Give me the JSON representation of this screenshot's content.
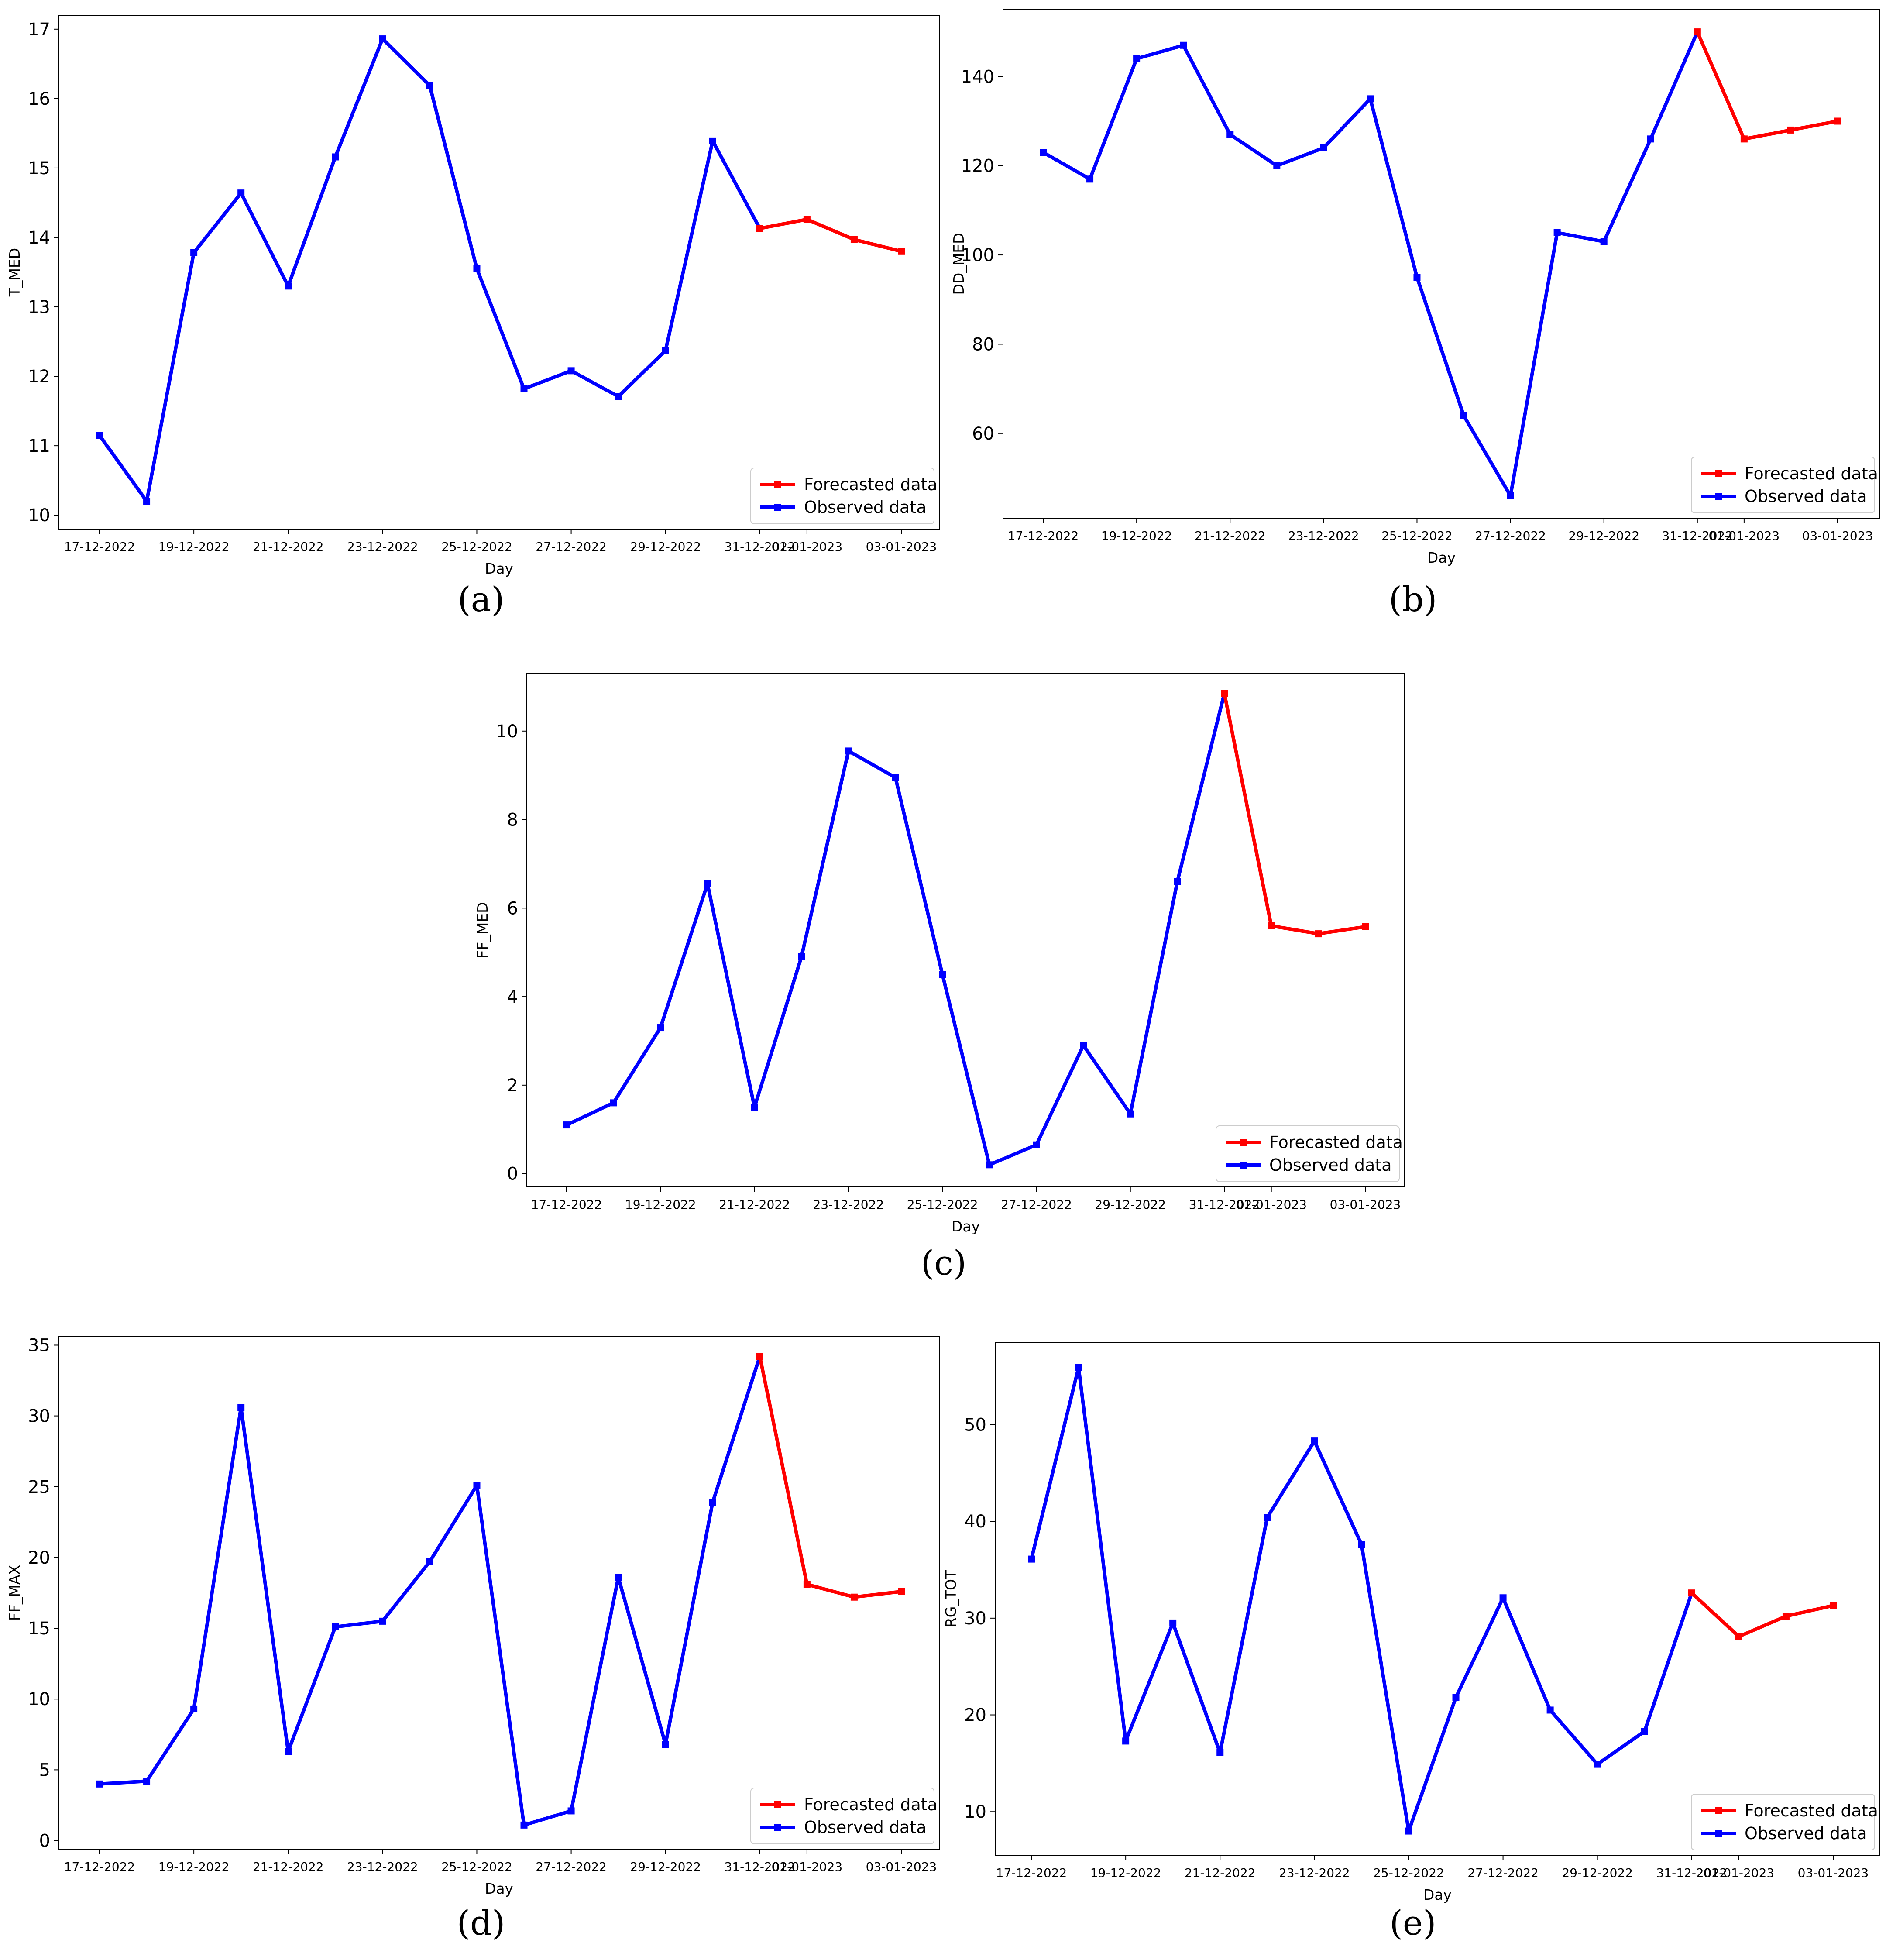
{
  "colors": {
    "observed": "#0000ff",
    "forecasted": "#ff0000"
  },
  "chart_data": [
    {
      "id": "a",
      "caption": "(a)",
      "type": "line",
      "xlabel": "Day",
      "ylabel": "T_MED",
      "ylim": [
        9.8,
        17.2
      ],
      "yticks": [
        10,
        11,
        12,
        13,
        14,
        15,
        16,
        17
      ],
      "xticks": [
        {
          "label": "17-12-2022",
          "x": 0
        },
        {
          "label": "19-12-2022",
          "x": 2
        },
        {
          "label": "21-12-2022",
          "x": 4
        },
        {
          "label": "23-12-2022",
          "x": 6
        },
        {
          "label": "25-12-2022",
          "x": 8
        },
        {
          "label": "27-12-2022",
          "x": 10
        },
        {
          "label": "29-12-2022",
          "x": 12
        },
        {
          "label": "31-12-2022",
          "x": 14
        },
        {
          "label": "01-01-2023",
          "x": 15
        },
        {
          "label": "03-01-2023",
          "x": 17
        }
      ],
      "series": [
        {
          "name": "Observed data",
          "x": [
            0,
            1,
            2,
            3,
            4,
            5,
            6,
            7,
            8,
            9,
            10,
            11,
            12,
            13,
            14
          ],
          "values": [
            11.15,
            10.2,
            13.78,
            14.64,
            13.3,
            15.16,
            16.86,
            16.19,
            13.55,
            11.82,
            12.08,
            11.71,
            12.37,
            15.39,
            14.13
          ]
        },
        {
          "name": "Forecasted data",
          "x": [
            14,
            15,
            16,
            17
          ],
          "values": [
            14.13,
            14.26,
            13.97,
            13.8
          ]
        }
      ],
      "legend": [
        "Forecasted data",
        "Observed data"
      ]
    },
    {
      "id": "b",
      "caption": "(b)",
      "type": "line",
      "xlabel": "Day",
      "ylabel": "DD_MED",
      "ylim": [
        41,
        155
      ],
      "yticks": [
        60,
        80,
        100,
        120,
        140
      ],
      "xticks": [
        {
          "label": "17-12-2022",
          "x": 0
        },
        {
          "label": "19-12-2022",
          "x": 2
        },
        {
          "label": "21-12-2022",
          "x": 4
        },
        {
          "label": "23-12-2022",
          "x": 6
        },
        {
          "label": "25-12-2022",
          "x": 8
        },
        {
          "label": "27-12-2022",
          "x": 10
        },
        {
          "label": "29-12-2022",
          "x": 12
        },
        {
          "label": "31-12-2022",
          "x": 14
        },
        {
          "label": "01-01-2023",
          "x": 15
        },
        {
          "label": "03-01-2023",
          "x": 17
        }
      ],
      "series": [
        {
          "name": "Observed data",
          "x": [
            0,
            1,
            2,
            3,
            4,
            5,
            6,
            7,
            8,
            9,
            10,
            11,
            12,
            13,
            14
          ],
          "values": [
            123,
            117,
            144,
            147,
            127,
            120,
            124,
            135,
            95,
            64,
            46,
            105,
            103,
            126,
            150
          ]
        },
        {
          "name": "Forecasted data",
          "x": [
            14,
            15,
            16,
            17
          ],
          "values": [
            150,
            126,
            128,
            130
          ]
        }
      ],
      "legend": [
        "Forecasted data",
        "Observed data"
      ]
    },
    {
      "id": "c",
      "caption": "(c)",
      "type": "line",
      "xlabel": "Day",
      "ylabel": "FF_MED",
      "ylim": [
        -0.3,
        11.3
      ],
      "yticks": [
        0,
        2,
        4,
        6,
        8,
        10
      ],
      "xticks": [
        {
          "label": "17-12-2022",
          "x": 0
        },
        {
          "label": "19-12-2022",
          "x": 2
        },
        {
          "label": "21-12-2022",
          "x": 4
        },
        {
          "label": "23-12-2022",
          "x": 6
        },
        {
          "label": "25-12-2022",
          "x": 8
        },
        {
          "label": "27-12-2022",
          "x": 10
        },
        {
          "label": "29-12-2022",
          "x": 12
        },
        {
          "label": "31-12-2022",
          "x": 14
        },
        {
          "label": "01-01-2023",
          "x": 15
        },
        {
          "label": "03-01-2023",
          "x": 17
        }
      ],
      "series": [
        {
          "name": "Observed data",
          "x": [
            0,
            1,
            2,
            3,
            4,
            5,
            6,
            7,
            8,
            9,
            10,
            11,
            12,
            13,
            14
          ],
          "values": [
            1.1,
            1.6,
            3.3,
            6.55,
            1.5,
            4.9,
            9.55,
            8.95,
            4.5,
            0.2,
            0.65,
            2.9,
            1.35,
            6.6,
            10.85
          ]
        },
        {
          "name": "Forecasted data",
          "x": [
            14,
            15,
            16,
            17
          ],
          "values": [
            10.85,
            5.6,
            5.42,
            5.58
          ]
        }
      ],
      "legend": [
        "Forecasted data",
        "Observed data"
      ]
    },
    {
      "id": "d",
      "caption": "(d)",
      "type": "line",
      "xlabel": "Day",
      "ylabel": "FF_MAX",
      "ylim": [
        -0.6,
        35.6
      ],
      "yticks": [
        0,
        5,
        10,
        15,
        20,
        25,
        30,
        35
      ],
      "xticks": [
        {
          "label": "17-12-2022",
          "x": 0
        },
        {
          "label": "19-12-2022",
          "x": 2
        },
        {
          "label": "21-12-2022",
          "x": 4
        },
        {
          "label": "23-12-2022",
          "x": 6
        },
        {
          "label": "25-12-2022",
          "x": 8
        },
        {
          "label": "27-12-2022",
          "x": 10
        },
        {
          "label": "29-12-2022",
          "x": 12
        },
        {
          "label": "31-12-2022",
          "x": 14
        },
        {
          "label": "01-01-2023",
          "x": 15
        },
        {
          "label": "03-01-2023",
          "x": 17
        }
      ],
      "series": [
        {
          "name": "Observed data",
          "x": [
            0,
            1,
            2,
            3,
            4,
            5,
            6,
            7,
            8,
            9,
            10,
            11,
            12,
            13,
            14
          ],
          "values": [
            4.0,
            4.2,
            9.3,
            30.6,
            6.3,
            15.1,
            15.5,
            19.7,
            25.1,
            1.1,
            2.1,
            18.6,
            6.8,
            23.9,
            34.2
          ]
        },
        {
          "name": "Forecasted data",
          "x": [
            14,
            15,
            16,
            17
          ],
          "values": [
            34.2,
            18.1,
            17.2,
            17.6
          ]
        }
      ],
      "legend": [
        "Forecasted data",
        "Observed data"
      ]
    },
    {
      "id": "e",
      "caption": "(e)",
      "type": "line",
      "xlabel": "Day",
      "ylabel": "RG_TOT",
      "ylim": [
        5.5,
        58.5
      ],
      "yticks": [
        10,
        20,
        30,
        40,
        50
      ],
      "xticks": [
        {
          "label": "17-12-2022",
          "x": 0
        },
        {
          "label": "19-12-2022",
          "x": 2
        },
        {
          "label": "21-12-2022",
          "x": 4
        },
        {
          "label": "23-12-2022",
          "x": 6
        },
        {
          "label": "25-12-2022",
          "x": 8
        },
        {
          "label": "27-12-2022",
          "x": 10
        },
        {
          "label": "29-12-2022",
          "x": 12
        },
        {
          "label": "31-12-2022",
          "x": 14
        },
        {
          "label": "01-01-2023",
          "x": 15
        },
        {
          "label": "03-01-2023",
          "x": 17
        }
      ],
      "series": [
        {
          "name": "Observed data",
          "x": [
            0,
            1,
            2,
            3,
            4,
            5,
            6,
            7,
            8,
            9,
            10,
            11,
            12,
            13,
            14
          ],
          "values": [
            36.1,
            55.9,
            17.3,
            29.5,
            16.1,
            40.4,
            48.3,
            37.6,
            8.0,
            21.8,
            32.1,
            20.5,
            14.9,
            18.3,
            32.6
          ]
        },
        {
          "name": "Forecasted data",
          "x": [
            14,
            15,
            16,
            17
          ],
          "values": [
            32.6,
            28.1,
            30.2,
            31.3
          ]
        }
      ],
      "legend": [
        "Forecasted data",
        "Observed data"
      ]
    }
  ]
}
